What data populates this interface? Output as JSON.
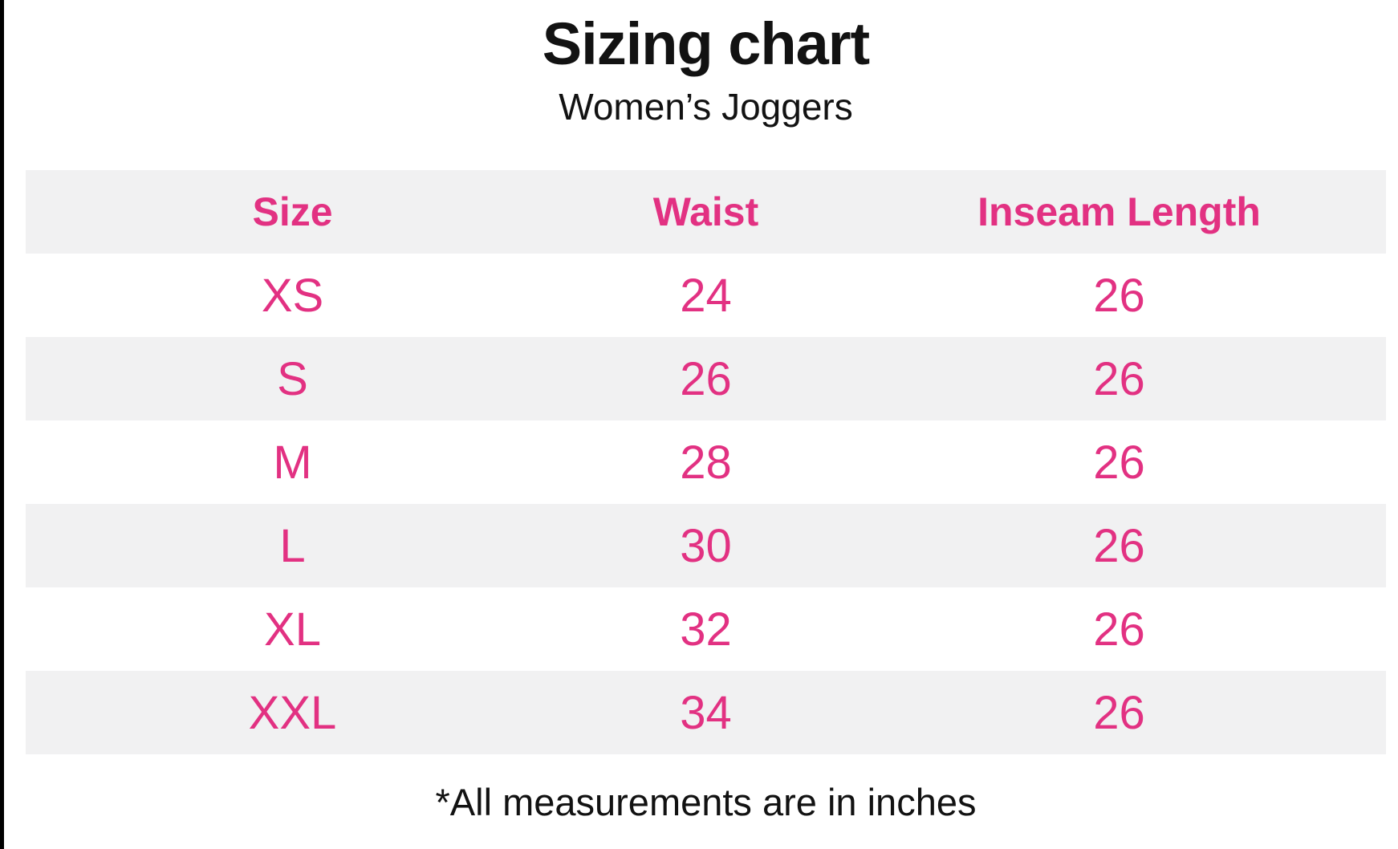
{
  "page": {
    "title": "Sizing chart",
    "subtitle": "Women’s Joggers",
    "footnote": "*All measurements are in inches"
  },
  "colors": {
    "accent_pink": "#E23182",
    "row_stripe": "#F1F1F2",
    "text": "#121212",
    "border": "#000000"
  },
  "chart_data": {
    "type": "table",
    "title": "Sizing chart",
    "subtitle": "Women’s Joggers",
    "columns": [
      "Size",
      "Waist",
      "Inseam Length"
    ],
    "rows": [
      [
        "XS",
        "24",
        "26"
      ],
      [
        "S",
        "26",
        "26"
      ],
      [
        "M",
        "28",
        "26"
      ],
      [
        "L",
        "30",
        "26"
      ],
      [
        "XL",
        "32",
        "26"
      ],
      [
        "XXL",
        "34",
        "26"
      ]
    ],
    "units": "inches",
    "footnote": "*All measurements are in inches",
    "layout_hints": {
      "striped_rows": true,
      "header_background": "#F1F1F2",
      "first_data_row_background": "#FFFFFF"
    }
  }
}
